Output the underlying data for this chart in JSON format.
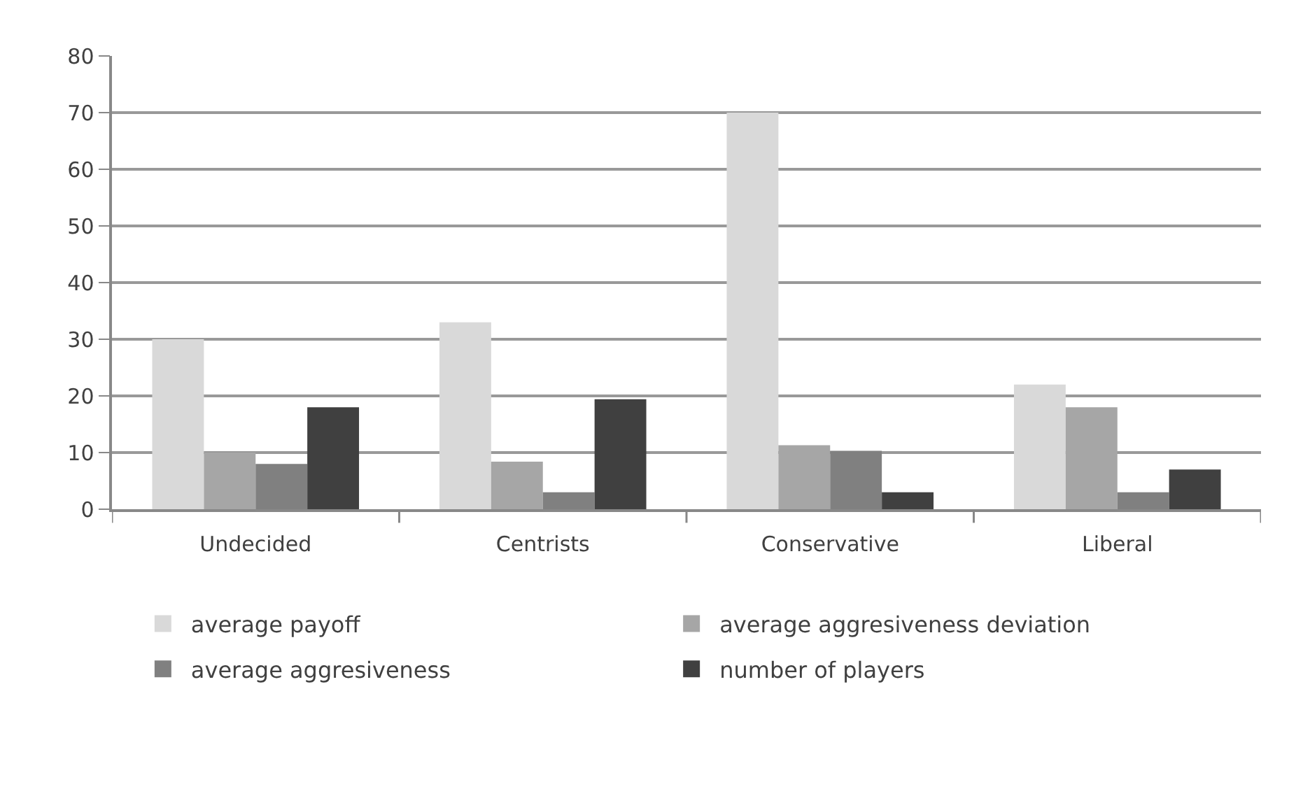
{
  "chart_data": {
    "type": "bar",
    "categories": [
      "Undecided",
      "Centrists",
      "Conservative",
      "Liberal"
    ],
    "series": [
      {
        "name": "average payoff",
        "color": "#d9d9d9",
        "values": [
          30,
          33,
          70,
          22
        ]
      },
      {
        "name": "average aggresiveness deviation",
        "color": "#a6a6a6",
        "values": [
          10,
          8.4,
          11.3,
          18
        ]
      },
      {
        "name": "average aggresiveness",
        "color": "#808080",
        "values": [
          8,
          3,
          10.3,
          3
        ]
      },
      {
        "name": "number of players",
        "color": "#404040",
        "values": [
          18,
          19.4,
          3,
          7
        ]
      }
    ],
    "ylim": [
      0,
      80
    ],
    "yticks": [
      0,
      10,
      20,
      30,
      40,
      50,
      60,
      70,
      80
    ],
    "grid": "y",
    "legend": "bottom"
  }
}
